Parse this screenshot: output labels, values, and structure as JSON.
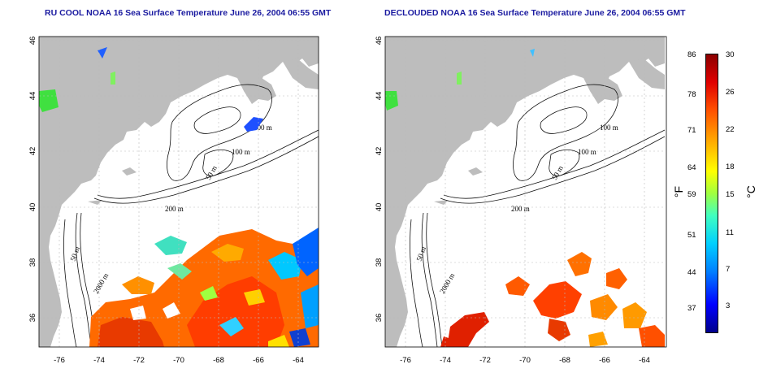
{
  "left_panel": {
    "title": "RU COOL NOAA 16 Sea Surface Temperature June 26, 2004 06:55 GMT"
  },
  "right_panel": {
    "title": "DECLOUDED NOAA 16 Sea Surface Temperature June 26, 2004 06:55 GMT"
  },
  "axes": {
    "lon_ticks": [
      "-76",
      "-74",
      "-72",
      "-70",
      "-68",
      "-66",
      "-64"
    ],
    "lat_ticks": [
      "46",
      "44",
      "42",
      "40",
      "38",
      "36"
    ]
  },
  "contour_labels": [
    "100 m",
    "100 m",
    "50 m",
    "200 m",
    "50 m",
    "2000 m"
  ],
  "colorbar": {
    "fahrenheit_ticks": [
      "86",
      "78",
      "71",
      "64",
      "59",
      "51",
      "44",
      "37"
    ],
    "celsius_ticks": [
      "30",
      "26",
      "22",
      "18",
      "15",
      "11",
      "7",
      "3"
    ],
    "fahrenheit_unit": "°F",
    "celsius_unit": "°C",
    "colors": [
      "#00008b",
      "#0000ff",
      "#0080ff",
      "#00d0ff",
      "#40ffc0",
      "#a0ff40",
      "#ffff00",
      "#ffb000",
      "#ff5000",
      "#e00000",
      "#8b0000"
    ]
  },
  "colors": {
    "land": "#bdbdbd",
    "ocean": "#ffffff",
    "title": "#1a1aa0"
  }
}
